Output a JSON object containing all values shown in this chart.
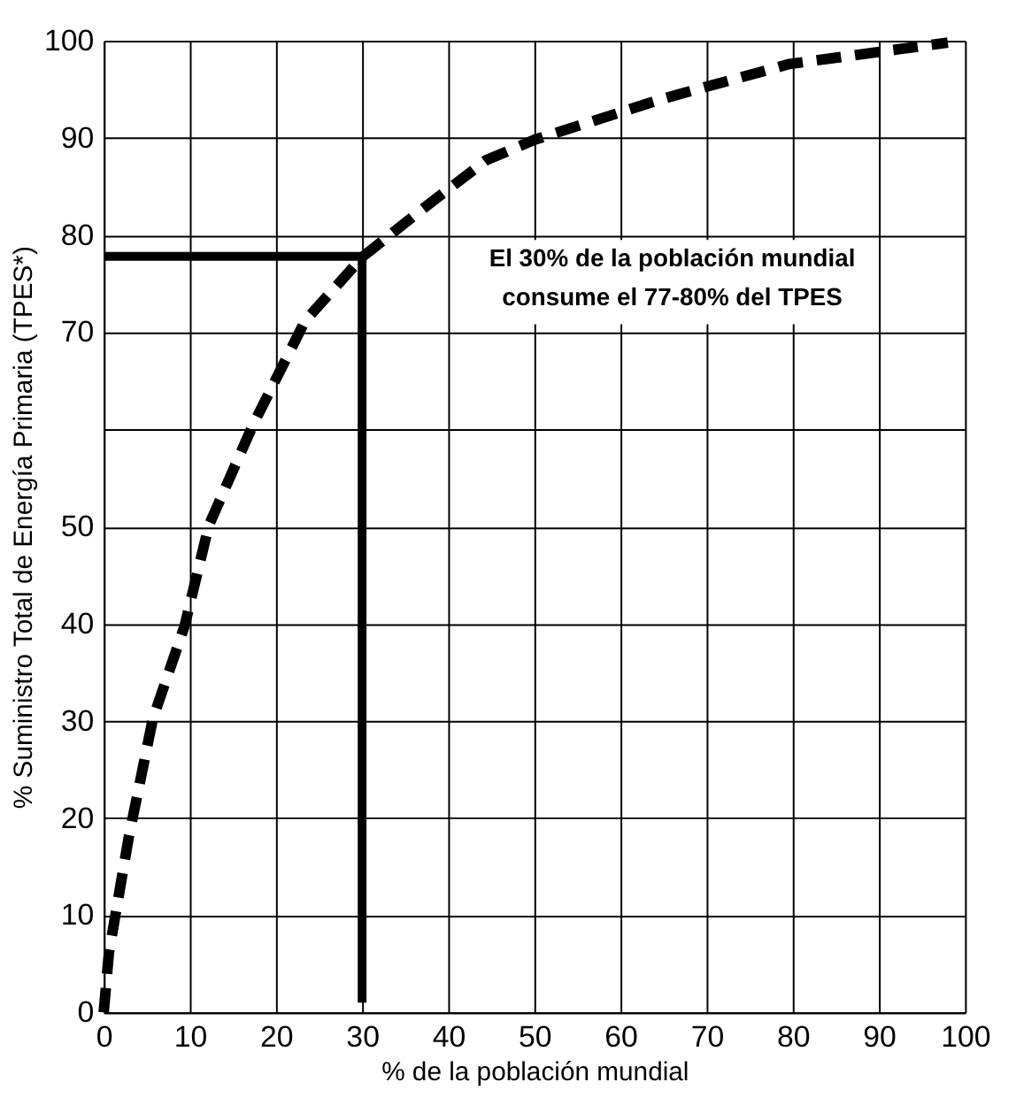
{
  "chart_data": {
    "type": "line",
    "xlabel": "% de la población mundial",
    "ylabel": "% Suministro Total de Energía Primaria (TPES*)",
    "annotations": [
      "El 30% de la población mundial\nconsume el 77-80% del TPES"
    ],
    "xlim": [
      0,
      100
    ],
    "xticks": [
      0,
      10,
      20,
      30,
      40,
      50,
      60,
      70,
      80,
      90,
      100
    ],
    "ylim": [
      0,
      100
    ],
    "yticks": [
      0,
      10,
      20,
      30,
      40,
      50,
      {
        "value": 60,
        "label": null
      },
      70,
      80,
      90,
      100
    ],
    "grid": true,
    "marker": "none",
    "series": [
      {
        "color": "#000000",
        "line_style": "dashed",
        "x": [
          0,
          0.6,
          2.9,
          5.7,
          9.4,
          12.2,
          17.3,
          23.4,
          30.1,
          36.9,
          44.4,
          50,
          64.8,
          79.6,
          98
        ],
        "values": [
          0,
          6.1,
          18,
          30.2,
          39.8,
          50.1,
          60.4,
          71.2,
          77.8,
          82.6,
          87.7,
          89.8,
          94,
          97.6,
          99.8
        ]
      },
      {
        "color": "#000000",
        "line_style": "solid",
        "x": [
          0,
          30,
          30
        ],
        "values": [
          77.8,
          77.8,
          1
        ]
      }
    ]
  }
}
